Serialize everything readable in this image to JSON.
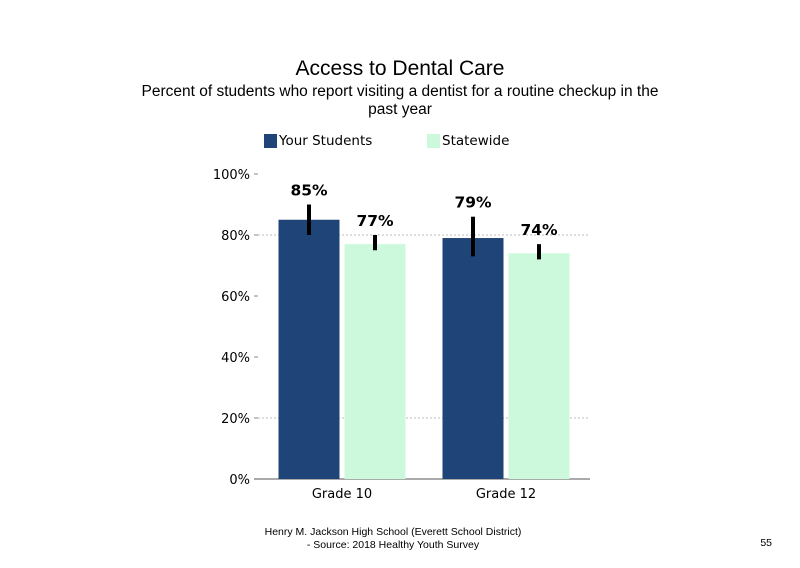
{
  "page": {
    "footer_line1": "Henry M. Jackson High School (Everett School District)",
    "footer_line2": "- Source: 2018 Healthy Youth Survey",
    "page_number": "55"
  },
  "chart_data": {
    "type": "bar",
    "title": "Access to Dental Care",
    "subtitle": "Percent of students who report visiting a dentist for a routine checkup in the past year",
    "xlabel": "",
    "ylabel": "",
    "categories": [
      "Grade 10",
      "Grade 12"
    ],
    "series": [
      {
        "name": "Your Students",
        "color": "#1f4477",
        "values": [
          85,
          79
        ],
        "labels": [
          "85%",
          "79%"
        ],
        "error_low": [
          80,
          73
        ],
        "error_high": [
          90,
          86
        ]
      },
      {
        "name": "Statewide",
        "color": "#ccf8dc",
        "values": [
          77,
          74
        ],
        "labels": [
          "77%",
          "74%"
        ],
        "error_low": [
          75,
          72
        ],
        "error_high": [
          80,
          77
        ]
      }
    ],
    "ylim": [
      0,
      100
    ],
    "yticks": [
      0,
      20,
      40,
      60,
      80,
      100
    ],
    "ytick_labels": [
      "0%",
      "20%",
      "40%",
      "60%",
      "80%",
      "100%"
    ],
    "grid": "dashed at 20% and 80%",
    "legend_position": "top"
  }
}
